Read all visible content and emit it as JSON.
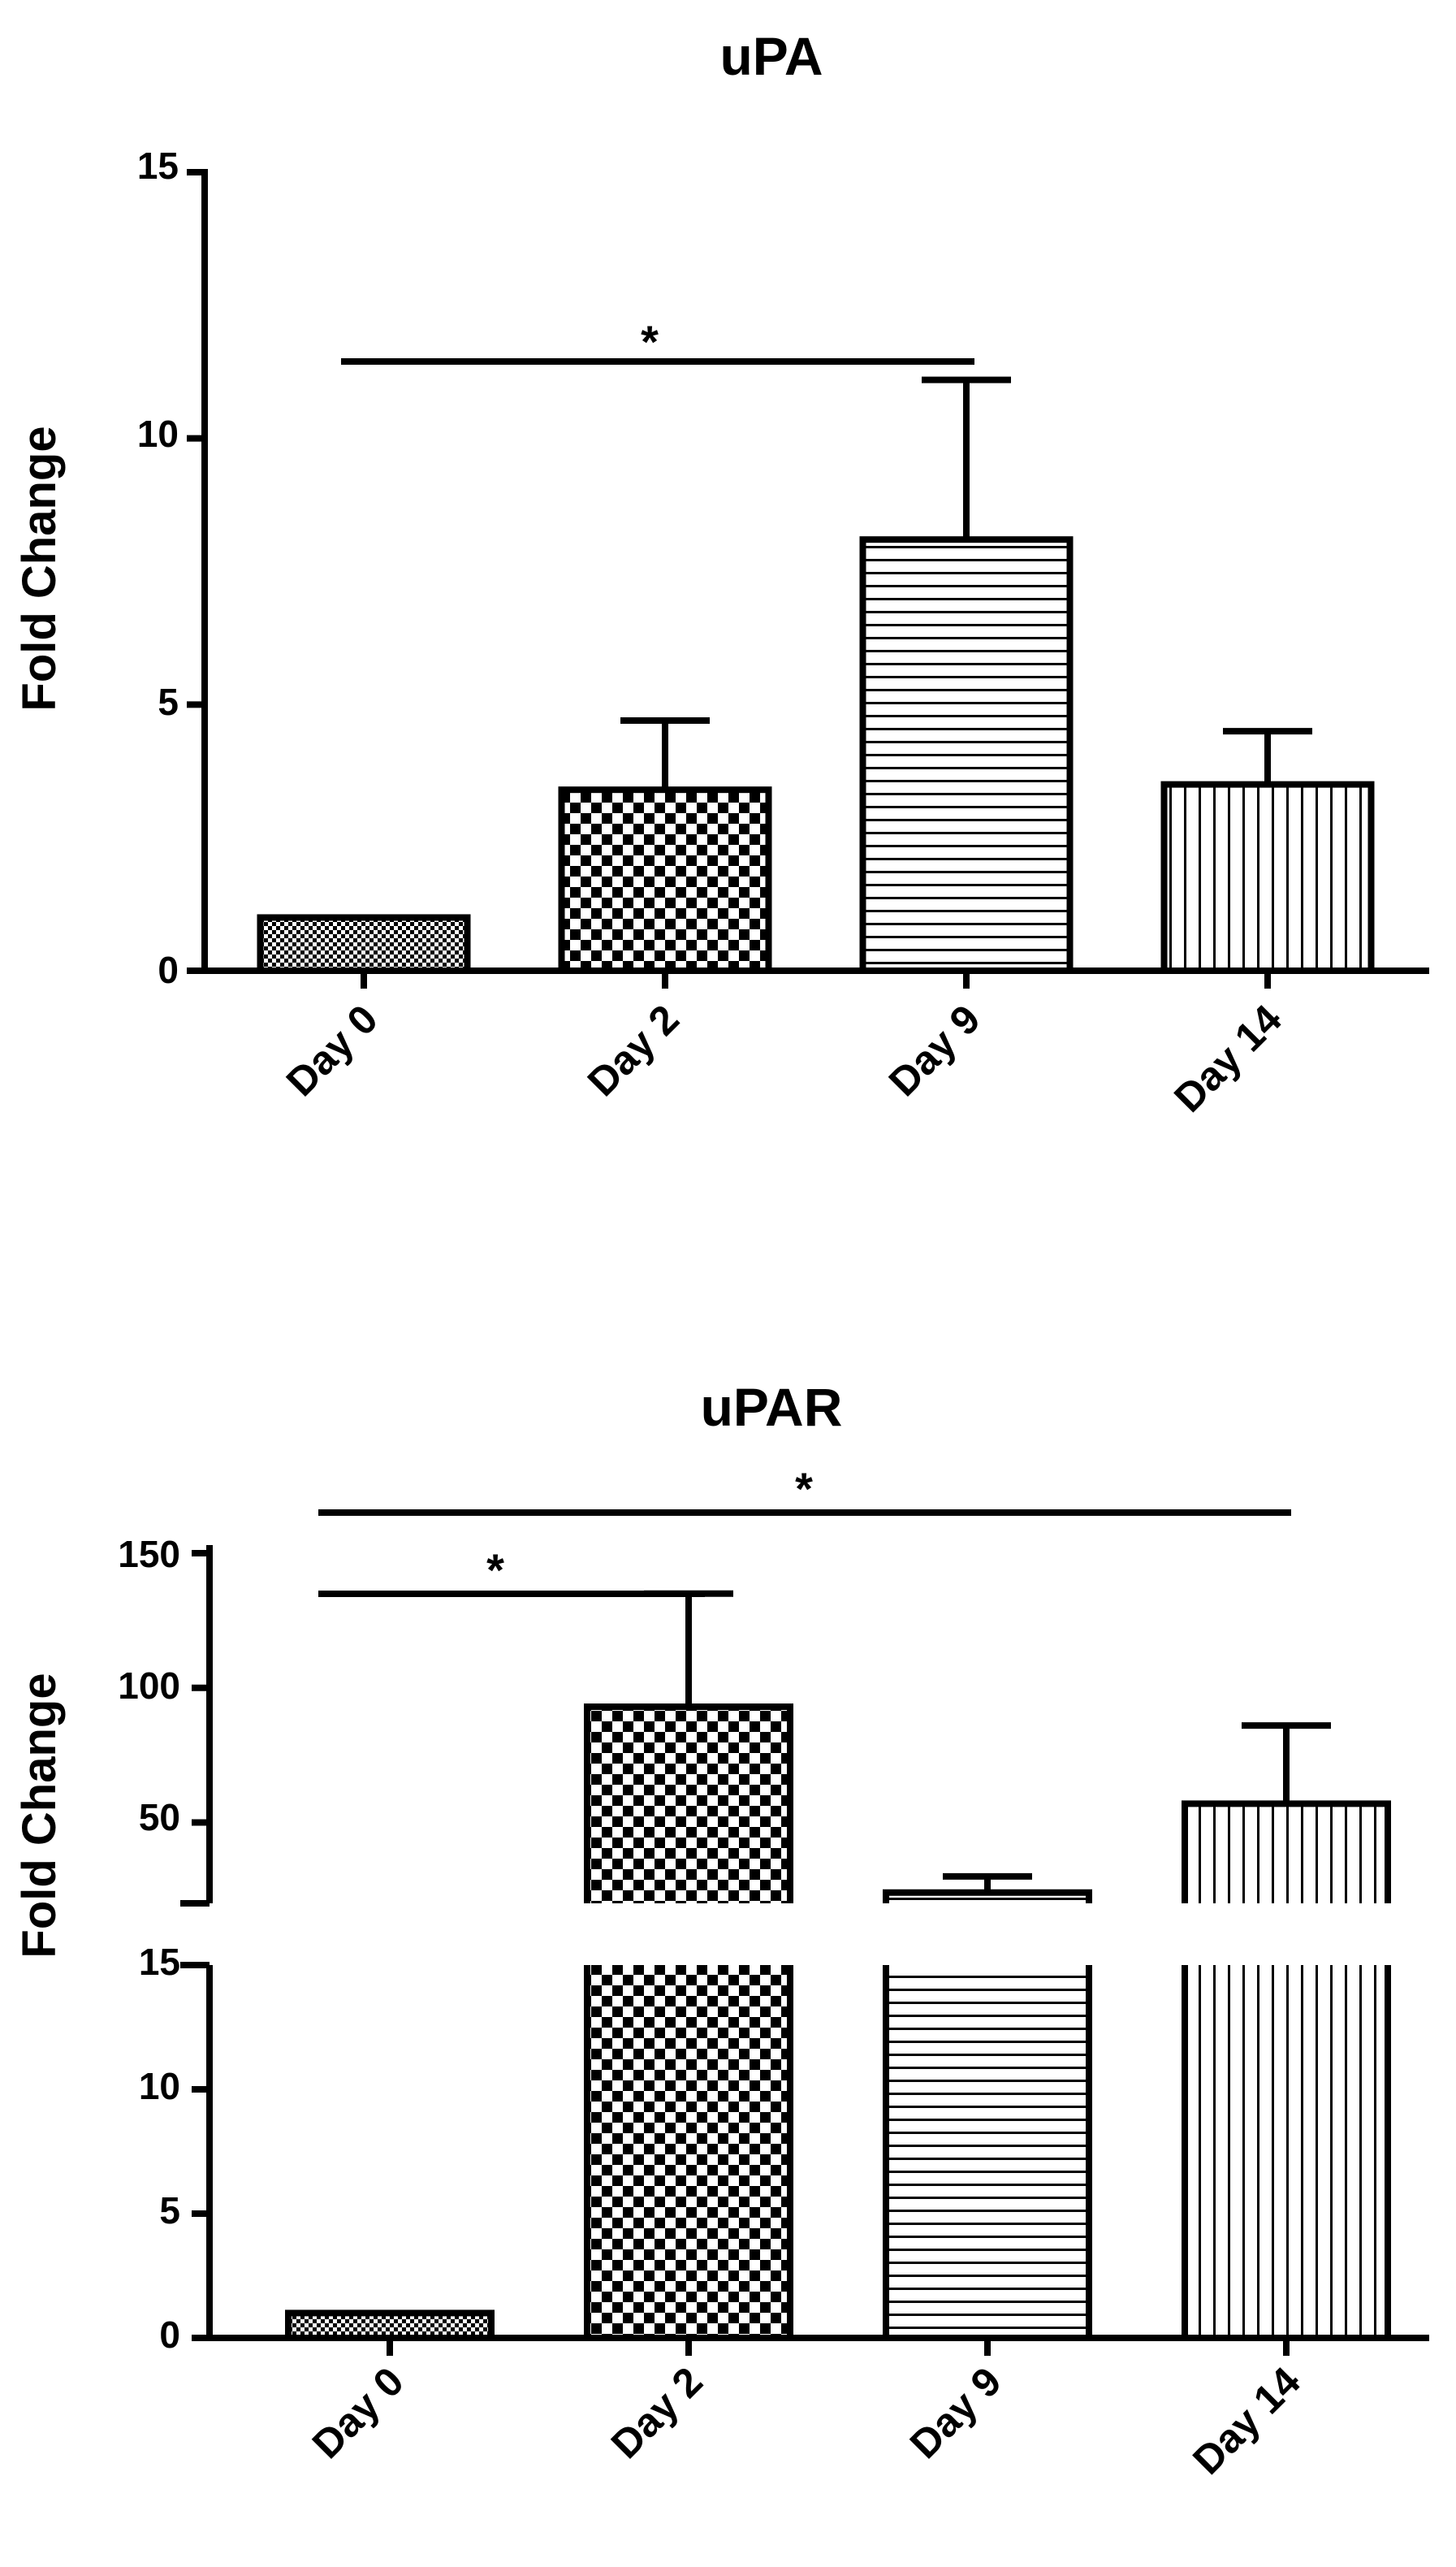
{
  "chart_data": [
    {
      "type": "bar",
      "title": "uPA",
      "ylabel": "Fold Change",
      "xlabel": "",
      "ylim": [
        0,
        15
      ],
      "yticks": [
        "0",
        "5",
        "10",
        "15"
      ],
      "categories": [
        "Day 0",
        "Day 2",
        "Day 9",
        "Day 14"
      ],
      "values": [
        1.0,
        3.4,
        8.1,
        3.5
      ],
      "errors": [
        0.0,
        1.3,
        3.0,
        1.0
      ],
      "patterns": [
        "fine-check",
        "checker",
        "horizontal-lines",
        "vertical-lines"
      ],
      "significance": [
        {
          "from": "Day 0",
          "to": "Day 9",
          "label": "*"
        }
      ],
      "grid": false,
      "legend": "none"
    },
    {
      "type": "bar",
      "title": "uPAR",
      "ylabel": "Fold Change",
      "xlabel": "",
      "y_axis_break": true,
      "ylim_lower": [
        0,
        15
      ],
      "ylim_upper": [
        20,
        150
      ],
      "yticks_lower": [
        "0",
        "5",
        "10",
        "15"
      ],
      "yticks_upper": [
        "50",
        "100",
        "150"
      ],
      "categories": [
        "Day 0",
        "Day 2",
        "Day 9",
        "Day 14"
      ],
      "values": [
        1.0,
        93,
        24,
        57
      ],
      "errors": [
        0.0,
        42,
        6,
        29
      ],
      "patterns": [
        "fine-check",
        "checker",
        "horizontal-lines",
        "vertical-lines"
      ],
      "significance": [
        {
          "from": "Day 0",
          "to": "Day 2",
          "label": "*"
        },
        {
          "from": "Day 0",
          "to": "Day 14",
          "label": "*"
        }
      ],
      "grid": false,
      "legend": "none"
    }
  ]
}
